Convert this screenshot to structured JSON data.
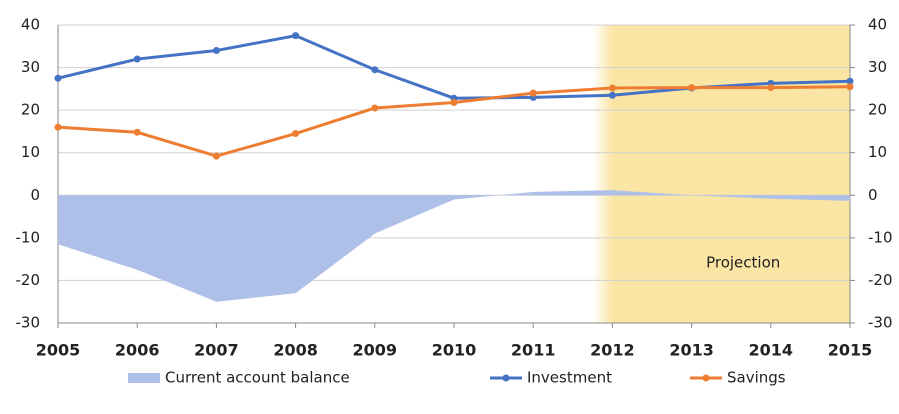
{
  "chart_data": {
    "type": "line",
    "x": [
      2005,
      2006,
      2007,
      2008,
      2009,
      2010,
      2011,
      2012,
      2013,
      2014,
      2015
    ],
    "xlim": [
      2005,
      2015
    ],
    "xticks": [
      2005,
      2006,
      2007,
      2008,
      2009,
      2010,
      2011,
      2012,
      2013,
      2014,
      2015
    ],
    "ylim": [
      -30,
      40
    ],
    "yticks": [
      -30,
      -20,
      -10,
      0,
      10,
      20,
      30,
      40
    ],
    "y2lim": [
      -30,
      40
    ],
    "y2ticks": [
      -30,
      -20,
      -10,
      0,
      10,
      20,
      30,
      40
    ],
    "grid": true,
    "shade": {
      "from": 2012,
      "to": 2015,
      "label": "Projection",
      "color": "#fbe5a4"
    },
    "legend": "bottom",
    "series": [
      {
        "name": "Current account balance",
        "kind": "area",
        "color": "#aec0e8",
        "values": [
          -11.5,
          -17.5,
          -25,
          -23,
          -9,
          -1,
          0.8,
          1.2,
          0,
          -0.8,
          -1.3
        ]
      },
      {
        "name": "Investment",
        "kind": "line",
        "color": "#4472c4",
        "values": [
          27.5,
          32,
          34,
          37.5,
          29.5,
          22.8,
          23,
          23.5,
          25.2,
          26.3,
          26.8
        ]
      },
      {
        "name": "Savings",
        "kind": "line",
        "color": "#ed7d31",
        "values": [
          16,
          14.8,
          9.2,
          14.5,
          20.5,
          21.8,
          24,
          25.2,
          25.3,
          25.3,
          25.5
        ]
      }
    ]
  }
}
